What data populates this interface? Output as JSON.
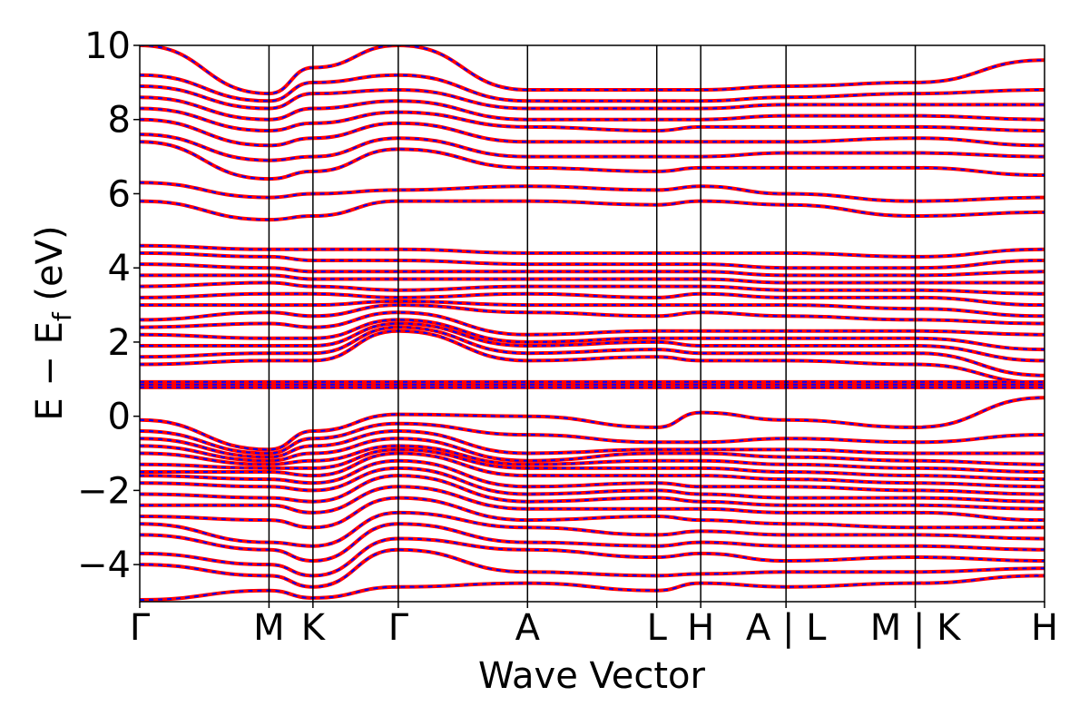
{
  "chart_data": {
    "type": "line",
    "xlabel": "Wave Vector",
    "ylabel": "E − E",
    "ylabel_sub": "f",
    "ylabel_unit": " (eV)",
    "ylim": [
      -5,
      10
    ],
    "y_ticks": [
      -4,
      -2,
      0,
      2,
      4,
      6,
      8,
      10
    ],
    "y_tick_labels": [
      "−4",
      "−2",
      "0",
      "2",
      "4",
      "6",
      "8",
      "10"
    ],
    "x_ticks": [
      0,
      1,
      1.34,
      2,
      3,
      4,
      4.34,
      5,
      6,
      7
    ],
    "x_tick_labels": [
      "Γ",
      "M",
      "K",
      "Γ",
      "A",
      "L",
      "H",
      "A | L",
      "M | K",
      "H"
    ],
    "xlim": [
      0,
      7
    ],
    "grid": false,
    "series_styles": [
      {
        "color": "#ff0000",
        "style": "solid"
      },
      {
        "color": "#0000ff",
        "style": "dashed"
      }
    ],
    "flat_band_energy": 0.85,
    "bands": [
      [
        -4.95,
        -4.7,
        -4.9,
        -4.6,
        -4.5,
        -4.7,
        -4.5,
        -4.6,
        -4.5,
        -4.3
      ],
      [
        -4.0,
        -4.3,
        -4.6,
        -3.6,
        -4.2,
        -4.3,
        -4.25,
        -4.2,
        -4.2,
        -4.1
      ],
      [
        -3.7,
        -4.0,
        -4.3,
        -3.3,
        -3.6,
        -3.8,
        -3.7,
        -3.9,
        -3.8,
        -3.9
      ],
      [
        -3.2,
        -3.6,
        -3.9,
        -2.9,
        -3.4,
        -3.5,
        -3.4,
        -3.5,
        -3.5,
        -3.6
      ],
      [
        -2.9,
        -3.4,
        -3.5,
        -2.6,
        -3.0,
        -3.2,
        -3.1,
        -3.2,
        -3.2,
        -3.3
      ],
      [
        -2.7,
        -2.8,
        -3.0,
        -2.2,
        -2.8,
        -2.7,
        -2.8,
        -2.9,
        -3.0,
        -3.0
      ],
      [
        -2.4,
        -2.4,
        -2.6,
        -1.9,
        -2.5,
        -2.5,
        -2.5,
        -2.6,
        -2.6,
        -2.8
      ],
      [
        -2.1,
        -2.2,
        -2.3,
        -1.6,
        -2.3,
        -2.2,
        -2.3,
        -2.4,
        -2.4,
        -2.5
      ],
      [
        -1.8,
        -1.9,
        -2.0,
        -1.4,
        -2.1,
        -2.0,
        -2.1,
        -2.2,
        -2.2,
        -2.3
      ],
      [
        -1.6,
        -1.7,
        -1.8,
        -1.2,
        -1.9,
        -1.8,
        -1.9,
        -1.9,
        -2.0,
        -2.1
      ],
      [
        -1.5,
        -1.5,
        -1.6,
        -1.0,
        -1.6,
        -1.6,
        -1.6,
        -1.7,
        -1.8,
        -1.9
      ],
      [
        -1.3,
        -1.4,
        -1.4,
        -0.9,
        -1.4,
        -1.4,
        -1.4,
        -1.5,
        -1.6,
        -1.7
      ],
      [
        -1.0,
        -1.3,
        -1.2,
        -0.8,
        -1.3,
        -1.2,
        -1.2,
        -1.3,
        -1.4,
        -1.5
      ],
      [
        -0.8,
        -1.2,
        -1.0,
        -0.6,
        -1.2,
        -1.0,
        -1.0,
        -1.1,
        -1.2,
        -1.3
      ],
      [
        -0.6,
        -1.1,
        -0.8,
        -0.4,
        -1.0,
        -0.9,
        -0.9,
        -0.9,
        -1.0,
        -1.0
      ],
      [
        -0.4,
        -1.0,
        -0.6,
        -0.2,
        -0.5,
        -0.7,
        -0.7,
        -0.6,
        -0.7,
        -0.5
      ],
      [
        -0.1,
        -0.9,
        -0.4,
        0.05,
        0.0,
        -0.3,
        0.1,
        -0.1,
        -0.3,
        0.5
      ],
      [
        1.4,
        1.5,
        1.5,
        2.3,
        1.5,
        1.6,
        1.5,
        1.5,
        1.4,
        0.9
      ],
      [
        1.6,
        1.7,
        1.7,
        2.4,
        1.7,
        1.8,
        1.7,
        1.7,
        1.7,
        1.1
      ],
      [
        1.9,
        1.9,
        1.9,
        2.5,
        1.9,
        2.0,
        1.9,
        1.9,
        1.9,
        1.5
      ],
      [
        2.2,
        2.1,
        2.1,
        2.6,
        2.0,
        2.1,
        2.1,
        2.1,
        2.1,
        1.8
      ],
      [
        2.4,
        2.5,
        2.4,
        2.8,
        2.2,
        2.3,
        2.3,
        2.3,
        2.3,
        2.2
      ],
      [
        2.6,
        2.8,
        2.7,
        3.0,
        2.8,
        2.7,
        2.8,
        2.7,
        2.6,
        2.5
      ],
      [
        3.0,
        3.0,
        3.0,
        3.1,
        3.0,
        3.0,
        3.0,
        3.0,
        2.9,
        2.7
      ],
      [
        3.2,
        3.3,
        3.3,
        3.2,
        3.3,
        3.2,
        3.3,
        3.2,
        3.2,
        3.0
      ],
      [
        3.5,
        3.6,
        3.5,
        3.4,
        3.5,
        3.5,
        3.5,
        3.4,
        3.4,
        3.3
      ],
      [
        3.8,
        3.8,
        3.7,
        3.7,
        3.7,
        3.7,
        3.7,
        3.6,
        3.6,
        3.6
      ],
      [
        4.1,
        4.0,
        3.9,
        3.9,
        3.9,
        3.9,
        3.9,
        3.8,
        3.8,
        3.9
      ],
      [
        4.4,
        4.3,
        4.2,
        4.2,
        4.1,
        4.1,
        4.1,
        4.0,
        4.0,
        4.2
      ],
      [
        4.6,
        4.5,
        4.5,
        4.5,
        4.4,
        4.4,
        4.4,
        4.4,
        4.3,
        4.5
      ],
      [
        5.8,
        5.3,
        5.4,
        5.8,
        5.8,
        5.7,
        5.8,
        5.7,
        5.4,
        5.5
      ],
      [
        6.3,
        5.9,
        6.0,
        6.1,
        6.2,
        6.1,
        6.2,
        6.0,
        5.8,
        5.9
      ],
      [
        7.4,
        6.4,
        6.6,
        7.2,
        6.7,
        6.6,
        6.7,
        6.7,
        6.7,
        6.5
      ],
      [
        7.6,
        6.9,
        7.0,
        7.5,
        7.0,
        7.0,
        7.0,
        7.1,
        7.1,
        7.0
      ],
      [
        8.0,
        7.3,
        7.5,
        7.9,
        7.4,
        7.4,
        7.4,
        7.4,
        7.5,
        7.3
      ],
      [
        8.3,
        7.7,
        7.9,
        8.2,
        7.8,
        7.7,
        7.8,
        7.8,
        7.8,
        7.7
      ],
      [
        8.6,
        8.0,
        8.3,
        8.5,
        8.0,
        8.0,
        8.0,
        8.1,
        8.1,
        8.0
      ],
      [
        8.9,
        8.3,
        8.7,
        8.8,
        8.3,
        8.3,
        8.3,
        8.4,
        8.4,
        8.4
      ],
      [
        9.2,
        8.5,
        9.0,
        9.2,
        8.5,
        8.5,
        8.5,
        8.6,
        8.7,
        8.8
      ],
      [
        10.0,
        8.7,
        9.4,
        10.0,
        8.8,
        8.8,
        8.8,
        8.9,
        9.0,
        9.6
      ]
    ]
  }
}
